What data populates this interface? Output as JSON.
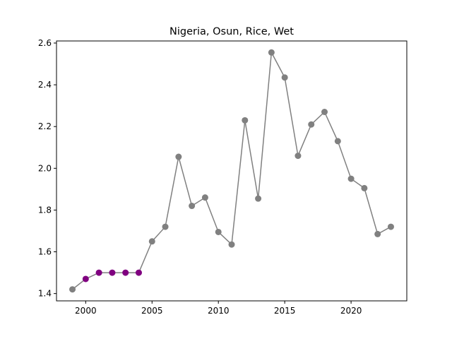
{
  "chart_data": {
    "type": "line",
    "title": "Nigeria, Osun, Rice, Wet",
    "xlabel": "",
    "ylabel": "",
    "xlim": [
      1997.8,
      2024.2
    ],
    "ylim": [
      1.365,
      2.61
    ],
    "x_ticks": [
      2000,
      2005,
      2010,
      2015,
      2020
    ],
    "y_ticks": [
      1.4,
      1.6,
      1.8,
      2.0,
      2.2,
      2.4,
      2.6
    ],
    "grid": false,
    "legend": "none",
    "line_color": "#808080",
    "series": [
      {
        "x": [
          1999,
          2000,
          2001,
          2002,
          2003,
          2004,
          2005,
          2006,
          2007,
          2008,
          2009,
          2010,
          2011,
          2012,
          2013,
          2014,
          2015,
          2016,
          2017,
          2018,
          2019,
          2020,
          2021,
          2022,
          2023
        ],
        "values": [
          1.42,
          1.47,
          1.5,
          1.5,
          1.5,
          1.5,
          1.65,
          1.72,
          2.055,
          1.82,
          1.86,
          1.695,
          1.635,
          2.23,
          1.855,
          2.555,
          2.435,
          2.06,
          2.21,
          2.27,
          2.13,
          1.95,
          1.905,
          1.685,
          1.72
        ],
        "marker_colors": [
          "#808080",
          "#800080",
          "#800080",
          "#800080",
          "#800080",
          "#800080",
          "#808080",
          "#808080",
          "#808080",
          "#808080",
          "#808080",
          "#808080",
          "#808080",
          "#808080",
          "#808080",
          "#808080",
          "#808080",
          "#808080",
          "#808080",
          "#808080",
          "#808080",
          "#808080",
          "#808080",
          "#808080",
          "#808080"
        ]
      }
    ]
  }
}
